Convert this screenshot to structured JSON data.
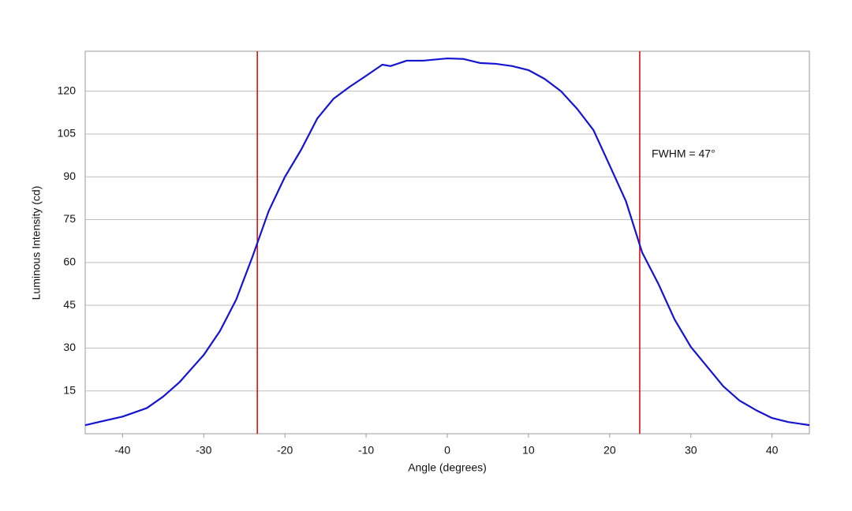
{
  "chart_data": {
    "type": "line",
    "x_label": "Angle (degrees)",
    "y_label": "Luminous Intensity (cd)",
    "annotation": "FWHM = 47°",
    "x": [
      -44.6,
      -40,
      -37,
      -35,
      -33,
      -30,
      -28,
      -26,
      -24,
      -22,
      -20,
      -18,
      -16,
      -14,
      -12,
      -10,
      -8,
      -7,
      -5,
      -3,
      0,
      2,
      4,
      6,
      8,
      10,
      12,
      14,
      16,
      18,
      20,
      22,
      24,
      26,
      28,
      30,
      32,
      34,
      36,
      38,
      40,
      42,
      44.6
    ],
    "series": [
      {
        "color": "#1414d2",
        "values": [
          3,
          6,
          9,
          13,
          18,
          27.6,
          36,
          47,
          62,
          78,
          90,
          99.5,
          110.5,
          117.4,
          121.6,
          125.4,
          129.3,
          128.8,
          130.7,
          130.7,
          131.5,
          131.3,
          129.9,
          129.6,
          128.8,
          127.4,
          124.3,
          120,
          113.8,
          106.4,
          94,
          81.5,
          63.5,
          52.5,
          40,
          30.4,
          23.5,
          16.6,
          11.6,
          8.3,
          5.5,
          4.1,
          3
        ]
      }
    ],
    "vlines": [
      -23.4,
      23.7
    ],
    "vline_color": "#dd0000",
    "xlim": [
      -44.6,
      44.6
    ],
    "xticks": [
      -40,
      -30,
      -20,
      -10,
      0,
      10,
      20,
      30,
      40
    ],
    "ylim": [
      0,
      134
    ],
    "yticks": [
      15,
      30,
      45,
      60,
      75,
      90,
      105,
      120
    ],
    "grid": true
  }
}
